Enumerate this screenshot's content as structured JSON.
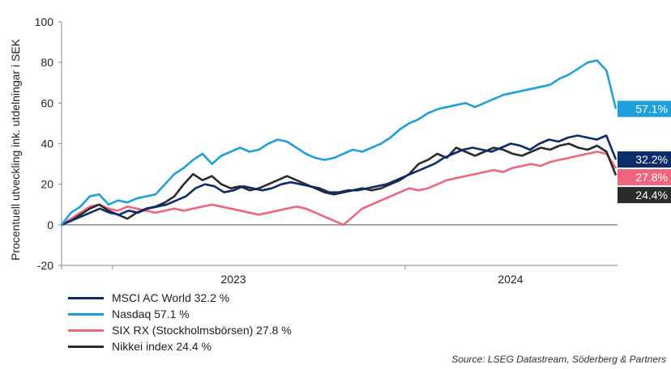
{
  "chart_data": {
    "type": "line",
    "ylabel": "Procentuell utveckling ink. utdelningar i SEK",
    "ylim": [
      -20,
      100
    ],
    "yticks": [
      -20,
      0,
      20,
      40,
      60,
      80,
      100
    ],
    "x_tick_labels": [
      "2023",
      "2024"
    ],
    "series": [
      {
        "name": "MSCI AC World 32.2 %",
        "end_label": "32.2%",
        "color": "#0b2d6b",
        "label_bg": "#0b2d6b",
        "values": [
          0,
          2,
          4,
          6,
          8,
          6,
          5,
          7,
          6,
          8,
          9,
          10,
          12,
          14,
          18,
          20,
          19,
          16,
          17,
          19,
          18,
          17,
          18,
          20,
          21,
          20,
          19,
          18,
          16,
          16,
          17,
          17,
          18,
          19,
          20,
          22,
          24,
          26,
          28,
          30,
          33,
          35,
          37,
          38,
          37,
          36,
          38,
          40,
          39,
          37,
          40,
          42,
          41,
          43,
          44,
          43,
          42,
          44,
          32.2
        ]
      },
      {
        "name": "Nasdaq 57.1 %",
        "end_label": "57.1%",
        "color": "#1fa0dc",
        "label_bg": "#1fa0dc",
        "values": [
          0,
          6,
          9,
          14,
          15,
          10,
          12,
          11,
          13,
          14,
          15,
          20,
          25,
          28,
          32,
          35,
          30,
          34,
          36,
          38,
          36,
          37,
          40,
          42,
          41,
          38,
          35,
          33,
          32,
          33,
          35,
          37,
          36,
          38,
          40,
          43,
          47,
          50,
          52,
          55,
          57,
          58,
          59,
          60,
          58,
          60,
          62,
          64,
          65,
          66,
          67,
          68,
          69,
          72,
          74,
          77,
          80,
          81,
          76,
          57.1
        ]
      },
      {
        "name": "SIX RX (Stockholmsbörsen) 27.8 %",
        "end_label": "27.8%",
        "color": "#f0657e",
        "label_bg": "#f0657e",
        "values": [
          0,
          3,
          6,
          9,
          10,
          8,
          7,
          9,
          8,
          7,
          6,
          7,
          8,
          7,
          8,
          9,
          10,
          9,
          8,
          7,
          6,
          5,
          6,
          7,
          8,
          9,
          8,
          6,
          4,
          2,
          0,
          4,
          8,
          10,
          12,
          14,
          16,
          18,
          17,
          18,
          20,
          22,
          23,
          24,
          25,
          26,
          27,
          26,
          28,
          29,
          30,
          29,
          31,
          32,
          33,
          34,
          35,
          36,
          35,
          27.8
        ]
      },
      {
        "name": "Nikkei index 24.4 %",
        "end_label": "24.4%",
        "color": "#2b2b2b",
        "label_bg": "#2b2b2b",
        "values": [
          0,
          2,
          5,
          8,
          10,
          7,
          5,
          3,
          6,
          8,
          9,
          11,
          14,
          20,
          25,
          22,
          24,
          20,
          18,
          19,
          17,
          18,
          20,
          22,
          24,
          22,
          20,
          18,
          16,
          15,
          16,
          17,
          18,
          17,
          18,
          20,
          22,
          25,
          30,
          32,
          35,
          33,
          38,
          36,
          34,
          36,
          38,
          37,
          35,
          34,
          36,
          38,
          37,
          39,
          40,
          38,
          37,
          39,
          36,
          24.4
        ]
      }
    ]
  },
  "source": "Source: LSEG Datastream, Söderberg & Partners"
}
